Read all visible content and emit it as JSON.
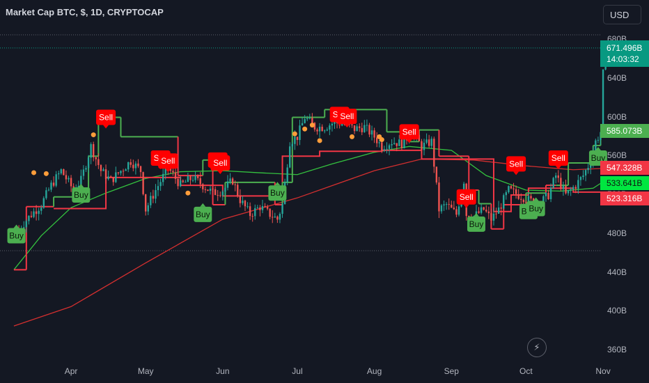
{
  "header": {
    "title": "Market Cap BTC, $, 1D, CRYPTOCAP",
    "currency_button": "USD"
  },
  "price_tags": {
    "current_value": "671.496B",
    "countdown": "14:03:32",
    "green_level": "585.073B",
    "red_upper": "547.328B",
    "ma_short": "533.641B",
    "red_lower": "523.316B"
  },
  "colors": {
    "background": "#141823",
    "up_candle": "#26a69a",
    "down_candle": "#ef5350",
    "buy_signal": "#4caf50",
    "sell_signal": "#ff0000",
    "trail_green": "#4caf50",
    "trail_red": "#f23645",
    "ma_short": "#34c23f",
    "ma_long": "#d32f2f",
    "marker_orange": "#ff9d3a",
    "current_price_tag": "#089981",
    "green_tag": "#4caf50",
    "red_tag": "#f23645",
    "ma_short_tag": "#00e640"
  },
  "icons": {
    "lightning": "lightning-icon"
  },
  "chart_data": {
    "type": "candlestick",
    "title": "Market Cap BTC, $, 1D, CRYPTOCAP",
    "ylim": [
      345,
      690
    ],
    "y_ticks": [
      "360B",
      "400B",
      "440B",
      "480B",
      "520B",
      "560B",
      "600B",
      "640B",
      "680B"
    ],
    "x_ticks": [
      "Apr",
      "May",
      "Jun",
      "Jul",
      "Aug",
      "Sep",
      "Oct",
      "Nov"
    ],
    "grid": false,
    "candle_anchors": [
      [
        "2024-03-11",
        485
      ],
      [
        "2024-03-16",
        500
      ],
      [
        "2024-03-20",
        510
      ],
      [
        "2024-03-24",
        530
      ],
      [
        "2024-03-28",
        545
      ],
      [
        "2024-04-02",
        525
      ],
      [
        "2024-04-05",
        535
      ],
      [
        "2024-04-09",
        570
      ],
      [
        "2024-04-13",
        545
      ],
      [
        "2024-04-17",
        535
      ],
      [
        "2024-04-21",
        545
      ],
      [
        "2024-04-25",
        555
      ],
      [
        "2024-04-29",
        545
      ],
      [
        "2024-05-01",
        505
      ],
      [
        "2024-05-05",
        525
      ],
      [
        "2024-05-10",
        548
      ],
      [
        "2024-05-15",
        530
      ],
      [
        "2024-05-20",
        538
      ],
      [
        "2024-05-24",
        530
      ],
      [
        "2024-05-28",
        522
      ],
      [
        "2024-06-01",
        525
      ],
      [
        "2024-06-05",
        535
      ],
      [
        "2024-06-08",
        515
      ],
      [
        "2024-06-12",
        500
      ],
      [
        "2024-06-16",
        508
      ],
      [
        "2024-06-20",
        500
      ],
      [
        "2024-06-23",
        495
      ],
      [
        "2024-06-25",
        510
      ],
      [
        "2024-06-28",
        575
      ],
      [
        "2024-07-01",
        580
      ],
      [
        "2024-07-04",
        600
      ],
      [
        "2024-07-08",
        590
      ],
      [
        "2024-07-12",
        590
      ],
      [
        "2024-07-16",
        595
      ],
      [
        "2024-07-20",
        593
      ],
      [
        "2024-07-24",
        588
      ],
      [
        "2024-07-28",
        590
      ],
      [
        "2024-08-01",
        580
      ],
      [
        "2024-08-04",
        570
      ],
      [
        "2024-08-08",
        575
      ],
      [
        "2024-08-12",
        573
      ],
      [
        "2024-08-16",
        585
      ],
      [
        "2024-08-20",
        570
      ],
      [
        "2024-08-24",
        575
      ],
      [
        "2024-08-27",
        505
      ],
      [
        "2024-08-30",
        510
      ],
      [
        "2024-09-03",
        500
      ],
      [
        "2024-09-06",
        535
      ],
      [
        "2024-09-07",
        500
      ],
      [
        "2024-09-10",
        498
      ],
      [
        "2024-09-14",
        505
      ],
      [
        "2024-09-17",
        495
      ],
      [
        "2024-09-20",
        505
      ],
      [
        "2024-09-24",
        525
      ],
      [
        "2024-09-28",
        520
      ],
      [
        "2024-10-02",
        515
      ],
      [
        "2024-10-06",
        510
      ],
      [
        "2024-10-10",
        520
      ],
      [
        "2024-10-13",
        540
      ],
      [
        "2024-10-17",
        520
      ],
      [
        "2024-10-21",
        530
      ],
      [
        "2024-10-24",
        540
      ],
      [
        "2024-10-27",
        555
      ],
      [
        "2024-10-29",
        575
      ],
      [
        "2024-10-31",
        585
      ],
      [
        "2024-11-01",
        645
      ],
      [
        "2024-11-02",
        671.5
      ]
    ],
    "trail_line": [
      [
        "2024-03-09",
        443,
        "red"
      ],
      [
        "2024-03-14",
        443,
        "red"
      ],
      [
        "2024-03-14",
        508,
        "red"
      ],
      [
        "2024-03-25",
        508,
        "red"
      ],
      [
        "2024-03-25",
        518,
        "green"
      ],
      [
        "2024-04-08",
        518,
        "green"
      ],
      [
        "2024-04-08",
        560,
        "green"
      ],
      [
        "2024-04-12",
        560,
        "green"
      ],
      [
        "2024-04-12",
        600,
        "green"
      ],
      [
        "2024-04-21",
        600,
        "green"
      ],
      [
        "2024-04-21",
        580,
        "green"
      ],
      [
        "2024-05-14",
        580,
        "green"
      ],
      [
        "2024-05-14",
        540,
        "red"
      ],
      [
        "2024-05-24",
        540,
        "red"
      ],
      [
        "2024-05-24",
        556,
        "green"
      ],
      [
        "2024-05-28",
        556,
        "green"
      ],
      [
        "2024-05-28",
        510,
        "red"
      ],
      [
        "2024-06-02",
        510,
        "red"
      ],
      [
        "2024-06-02",
        533,
        "green"
      ],
      [
        "2024-06-22",
        533,
        "green"
      ],
      [
        "2024-06-22",
        510,
        "red"
      ],
      [
        "2024-06-25",
        510,
        "red"
      ],
      [
        "2024-06-25",
        533,
        "green"
      ],
      [
        "2024-06-29",
        533,
        "green"
      ],
      [
        "2024-06-29",
        600,
        "green"
      ],
      [
        "2024-07-12",
        600,
        "green"
      ],
      [
        "2024-07-12",
        608,
        "green"
      ],
      [
        "2024-08-06",
        608,
        "green"
      ],
      [
        "2024-08-06",
        585,
        "green"
      ],
      [
        "2024-08-15",
        585,
        "green"
      ],
      [
        "2024-08-15",
        575,
        "green"
      ],
      [
        "2024-08-19",
        575,
        "green"
      ],
      [
        "2024-08-19",
        587,
        "green"
      ],
      [
        "2024-08-27",
        587,
        "green"
      ],
      [
        "2024-08-27",
        560,
        "red"
      ],
      [
        "2024-09-08",
        560,
        "red"
      ],
      [
        "2024-09-08",
        525,
        "red"
      ],
      [
        "2024-09-12",
        525,
        "red"
      ],
      [
        "2024-09-12",
        511,
        "green"
      ],
      [
        "2024-09-17",
        511,
        "green"
      ],
      [
        "2024-09-17",
        485,
        "red"
      ],
      [
        "2024-09-22",
        485,
        "red"
      ],
      [
        "2024-09-22",
        510,
        "red"
      ],
      [
        "2024-10-01",
        510,
        "red"
      ],
      [
        "2024-10-01",
        522,
        "green"
      ],
      [
        "2024-10-09",
        522,
        "green"
      ],
      [
        "2024-10-09",
        530,
        "red"
      ],
      [
        "2024-10-13",
        530,
        "red"
      ],
      [
        "2024-10-13",
        530,
        "green"
      ],
      [
        "2024-10-18",
        530,
        "green"
      ],
      [
        "2024-10-18",
        553,
        "green"
      ],
      [
        "2024-10-28",
        553,
        "green"
      ],
      [
        "2024-10-28",
        571,
        "green"
      ],
      [
        "2024-10-31",
        571,
        "green"
      ],
      [
        "2024-10-31",
        585,
        "green"
      ],
      [
        "2024-11-03",
        585,
        "green"
      ]
    ],
    "red_steps": [
      [
        "2024-03-25",
        506
      ],
      [
        "2024-04-15",
        506
      ],
      [
        "2024-04-15",
        538
      ],
      [
        "2024-05-15",
        538
      ],
      [
        "2024-05-15",
        530
      ],
      [
        "2024-06-01",
        530
      ],
      [
        "2024-06-01",
        519
      ],
      [
        "2024-06-25",
        519
      ],
      [
        "2024-06-25",
        560
      ],
      [
        "2024-07-10",
        560
      ],
      [
        "2024-07-10",
        565
      ],
      [
        "2024-08-04",
        565
      ],
      [
        "2024-08-04",
        566
      ],
      [
        "2024-08-20",
        566
      ],
      [
        "2024-08-20",
        557
      ],
      [
        "2024-09-18",
        557
      ],
      [
        "2024-09-18",
        503
      ],
      [
        "2024-09-25",
        503
      ],
      [
        "2024-09-25",
        520
      ],
      [
        "2024-10-02",
        520
      ],
      [
        "2024-10-02",
        527
      ],
      [
        "2024-10-20",
        527
      ],
      [
        "2024-10-20",
        523
      ],
      [
        "2024-11-03",
        523
      ]
    ],
    "series": [
      {
        "values": [
          [
            "2024-03-09",
            443
          ],
          [
            "2024-03-20",
            478
          ],
          [
            "2024-04-01",
            507
          ],
          [
            "2024-04-15",
            522
          ],
          [
            "2024-05-01",
            537
          ],
          [
            "2024-05-15",
            544
          ],
          [
            "2024-06-01",
            545
          ],
          [
            "2024-06-15",
            543
          ],
          [
            "2024-07-01",
            541
          ],
          [
            "2024-07-15",
            552
          ],
          [
            "2024-08-01",
            564
          ],
          [
            "2024-08-15",
            570
          ],
          [
            "2024-09-01",
            566
          ],
          [
            "2024-09-15",
            540
          ],
          [
            "2024-10-01",
            525
          ],
          [
            "2024-10-15",
            524
          ],
          [
            "2024-10-28",
            527
          ],
          [
            "2024-11-01",
            533.641
          ]
        ]
      },
      {
        "values": [
          [
            "2024-03-09",
            385
          ],
          [
            "2024-04-01",
            405
          ],
          [
            "2024-05-01",
            450
          ],
          [
            "2024-06-01",
            495
          ],
          [
            "2024-07-01",
            517
          ],
          [
            "2024-08-01",
            545
          ],
          [
            "2024-08-20",
            557
          ],
          [
            "2024-09-10",
            556
          ],
          [
            "2024-10-01",
            550
          ],
          [
            "2024-10-20",
            546
          ],
          [
            "2024-11-01",
            547.328
          ]
        ]
      }
    ],
    "markers": [
      {
        "label": "Buy",
        "date": "2024-03-10",
        "y": 478
      },
      {
        "label": "Buy",
        "date": "2024-04-05",
        "y": 520
      },
      {
        "label": "Sell",
        "date": "2024-04-15",
        "y": 600
      },
      {
        "label": "Sell",
        "date": "2024-05-07",
        "y": 558
      },
      {
        "label": "Sell",
        "date": "2024-05-10",
        "y": 555
      },
      {
        "label": "Buy",
        "date": "2024-05-24",
        "y": 500
      },
      {
        "label": "Sell",
        "date": "2024-05-30",
        "y": 556
      },
      {
        "label": "Sell",
        "date": "2024-05-31",
        "y": 553
      },
      {
        "label": "Buy",
        "date": "2024-06-23",
        "y": 522
      },
      {
        "label": "Sell",
        "date": "2024-07-18",
        "y": 603
      },
      {
        "label": "Sell",
        "date": "2024-07-21",
        "y": 601
      },
      {
        "label": "Sell",
        "date": "2024-08-15",
        "y": 585
      },
      {
        "label": "Sell",
        "date": "2024-09-07",
        "y": 518
      },
      {
        "label": "Buy",
        "date": "2024-09-11",
        "y": 490
      },
      {
        "label": "Sell",
        "date": "2024-09-27",
        "y": 552
      },
      {
        "label": "Buy",
        "date": "2024-10-02",
        "y": 503
      },
      {
        "label": "Buy",
        "date": "2024-10-05",
        "y": 506
      },
      {
        "label": "Sell",
        "date": "2024-10-14",
        "y": 558
      },
      {
        "label": "Buy",
        "date": "2024-10-30",
        "y": 558
      }
    ],
    "orange_dots": [
      [
        "2024-03-17",
        543
      ],
      [
        "2024-03-22",
        542
      ],
      [
        "2024-04-10",
        582
      ],
      [
        "2024-05-18",
        522
      ],
      [
        "2024-06-30",
        583
      ],
      [
        "2024-07-04",
        588
      ],
      [
        "2024-07-07",
        592
      ],
      [
        "2024-07-10",
        576
      ],
      [
        "2024-07-23",
        580
      ],
      [
        "2024-08-03",
        580
      ],
      [
        "2024-08-04",
        577
      ]
    ]
  }
}
